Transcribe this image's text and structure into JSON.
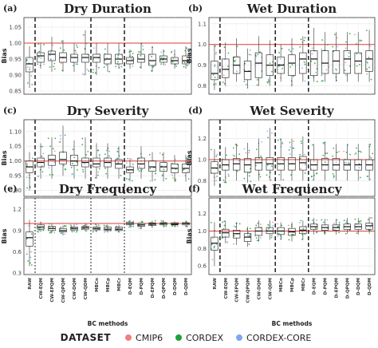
{
  "legend": {
    "title": "DATASET",
    "items": [
      {
        "label": "CMIP6",
        "color": "#f07f7f"
      },
      {
        "label": "CORDEX",
        "color": "#1fa03a"
      },
      {
        "label": "CORDEX-CORE",
        "color": "#7fa7f0"
      }
    ]
  },
  "chart_data": [
    {
      "type": "box",
      "panel_label": "(a)",
      "title": "Dry Duration",
      "ylabel": "Bias",
      "ylim": [
        0.84,
        1.08
      ],
      "yticks": [
        "0.85",
        "0.90",
        "0.95",
        "1.00",
        "1.05"
      ],
      "ytick_values": [
        0.85,
        0.9,
        0.95,
        1.0,
        1.05
      ],
      "reference_line": 1.0,
      "separator_style": "dashed",
      "categories": [
        "RAW",
        "CW-EQM",
        "CW-EPQM",
        "CW-QPQM",
        "CW-DQM",
        "CW-QDM",
        "MBCn",
        "MBCp",
        "MBCr",
        "D-EQM",
        "D-PQM",
        "D-EPQM",
        "D-QPQM",
        "D-DQM",
        "D-QDM"
      ],
      "boxes": [
        {
          "min": 0.86,
          "q1": 0.91,
          "median": 0.935,
          "q3": 0.955,
          "max": 0.99
        },
        {
          "min": 0.92,
          "q1": 0.94,
          "median": 0.96,
          "q3": 0.97,
          "max": 1.0
        },
        {
          "min": 0.91,
          "q1": 0.945,
          "median": 0.965,
          "q3": 0.975,
          "max": 1.02
        },
        {
          "min": 0.91,
          "q1": 0.94,
          "median": 0.955,
          "q3": 0.97,
          "max": 1.01
        },
        {
          "min": 0.91,
          "q1": 0.94,
          "median": 0.955,
          "q3": 0.965,
          "max": 1.0
        },
        {
          "min": 0.9,
          "q1": 0.94,
          "median": 0.955,
          "q3": 0.965,
          "max": 1.04
        },
        {
          "min": 0.9,
          "q1": 0.94,
          "median": 0.955,
          "q3": 0.965,
          "max": 1.0
        },
        {
          "min": 0.91,
          "q1": 0.935,
          "median": 0.95,
          "q3": 0.965,
          "max": 1.0
        },
        {
          "min": 0.92,
          "q1": 0.935,
          "median": 0.95,
          "q3": 0.965,
          "max": 1.0
        },
        {
          "min": 0.92,
          "q1": 0.935,
          "median": 0.945,
          "q3": 0.955,
          "max": 0.98
        },
        {
          "min": 0.92,
          "q1": 0.94,
          "median": 0.95,
          "q3": 0.965,
          "max": 1.0
        },
        {
          "min": 0.91,
          "q1": 0.93,
          "median": 0.945,
          "q3": 0.965,
          "max": 0.99
        },
        {
          "min": 0.93,
          "q1": 0.94,
          "median": 0.95,
          "q3": 0.96,
          "max": 0.98
        },
        {
          "min": 0.92,
          "q1": 0.935,
          "median": 0.945,
          "q3": 0.955,
          "max": 0.98
        },
        {
          "min": 0.92,
          "q1": 0.935,
          "median": 0.945,
          "q3": 0.96,
          "max": 0.99
        }
      ]
    },
    {
      "type": "box",
      "panel_label": "(b)",
      "title": "Wet Duration",
      "ylabel": "Bias",
      "ylim": [
        0.76,
        1.13
      ],
      "yticks": [
        "0.8",
        "0.9",
        "1.0",
        "1.1"
      ],
      "ytick_values": [
        0.8,
        0.9,
        1.0,
        1.1
      ],
      "reference_line": 1.0,
      "separator_style": "dashed",
      "categories": [
        "RAW",
        "CW-EQM",
        "CW-EPQM",
        "CW-QPQM",
        "CW-DQM",
        "CW-QDM",
        "MBCn",
        "MBCp",
        "MBCr",
        "D-EQM",
        "D-PQM",
        "D-EPQM",
        "D-QPQM",
        "D-DQM",
        "D-QDM"
      ],
      "boxes": [
        {
          "min": 0.78,
          "q1": 0.83,
          "median": 0.86,
          "q3": 0.92,
          "max": 1.0
        },
        {
          "min": 0.8,
          "q1": 0.84,
          "median": 0.88,
          "q3": 0.93,
          "max": 1.01
        },
        {
          "min": 0.82,
          "q1": 0.86,
          "median": 0.9,
          "q3": 0.94,
          "max": 1.03
        },
        {
          "min": 0.79,
          "q1": 0.83,
          "median": 0.87,
          "q3": 0.92,
          "max": 0.98
        },
        {
          "min": 0.8,
          "q1": 0.84,
          "median": 0.91,
          "q3": 0.96,
          "max": 1.04
        },
        {
          "min": 0.8,
          "q1": 0.85,
          "median": 0.9,
          "q3": 0.95,
          "max": 1.02
        },
        {
          "min": 0.82,
          "q1": 0.86,
          "median": 0.9,
          "q3": 0.94,
          "max": 1.0
        },
        {
          "min": 0.8,
          "q1": 0.85,
          "median": 0.91,
          "q3": 0.95,
          "max": 1.03
        },
        {
          "min": 0.82,
          "q1": 0.86,
          "median": 0.93,
          "q3": 0.96,
          "max": 1.04
        },
        {
          "min": 0.82,
          "q1": 0.85,
          "median": 0.93,
          "q3": 0.97,
          "max": 1.08
        },
        {
          "min": 0.82,
          "q1": 0.86,
          "median": 0.91,
          "q3": 0.97,
          "max": 1.06
        },
        {
          "min": 0.82,
          "q1": 0.86,
          "median": 0.92,
          "q3": 0.97,
          "max": 1.06
        },
        {
          "min": 0.82,
          "q1": 0.86,
          "median": 0.93,
          "q3": 0.97,
          "max": 1.06
        },
        {
          "min": 0.82,
          "q1": 0.86,
          "median": 0.92,
          "q3": 0.96,
          "max": 1.06
        },
        {
          "min": 0.82,
          "q1": 0.87,
          "median": 0.93,
          "q3": 0.97,
          "max": 1.07
        }
      ]
    },
    {
      "type": "box",
      "panel_label": "(c)",
      "title": "Dry Severity",
      "ylabel": "Bias",
      "ylim": [
        0.88,
        1.14
      ],
      "yticks": [
        "0.90",
        "0.95",
        "1.00",
        "1.05",
        "1.10"
      ],
      "ytick_values": [
        0.9,
        0.95,
        1.0,
        1.05,
        1.1
      ],
      "reference_line": 1.0,
      "separator_style": "dashed",
      "categories": [
        "RAW",
        "CW-EQM",
        "CW-EPQM",
        "CW-QPQM",
        "CW-DQM",
        "CW-QDM",
        "MBCn",
        "MBCp",
        "MBCr",
        "D-EQM",
        "D-PQM",
        "D-EPQM",
        "D-QPQM",
        "D-DQM",
        "D-QDM"
      ],
      "boxes": [
        {
          "min": 0.9,
          "q1": 0.96,
          "median": 0.98,
          "q3": 1.0,
          "max": 1.03
        },
        {
          "min": 0.94,
          "q1": 0.98,
          "median": 0.995,
          "q3": 1.01,
          "max": 1.06
        },
        {
          "min": 0.94,
          "q1": 0.985,
          "median": 1.005,
          "q3": 1.02,
          "max": 1.08
        },
        {
          "min": 0.95,
          "q1": 0.99,
          "median": 1.005,
          "q3": 1.03,
          "max": 1.12
        },
        {
          "min": 0.94,
          "q1": 0.985,
          "median": 1.0,
          "q3": 1.02,
          "max": 1.07
        },
        {
          "min": 0.94,
          "q1": 0.98,
          "median": 0.995,
          "q3": 1.01,
          "max": 1.08
        },
        {
          "min": 0.94,
          "q1": 0.98,
          "median": 0.99,
          "q3": 1.01,
          "max": 1.06
        },
        {
          "min": 0.94,
          "q1": 0.98,
          "median": 0.995,
          "q3": 1.01,
          "max": 1.06
        },
        {
          "min": 0.94,
          "q1": 0.975,
          "median": 0.99,
          "q3": 1.005,
          "max": 1.05
        },
        {
          "min": 0.93,
          "q1": 0.96,
          "median": 0.97,
          "q3": 0.98,
          "max": 1.01
        },
        {
          "min": 0.94,
          "q1": 0.975,
          "median": 0.99,
          "q3": 1.01,
          "max": 1.05
        },
        {
          "min": 0.93,
          "q1": 0.965,
          "median": 0.98,
          "q3": 1.0,
          "max": 1.03
        },
        {
          "min": 0.93,
          "q1": 0.965,
          "median": 0.98,
          "q3": 0.995,
          "max": 1.03
        },
        {
          "min": 0.93,
          "q1": 0.96,
          "median": 0.975,
          "q3": 0.99,
          "max": 1.02
        },
        {
          "min": 0.93,
          "q1": 0.96,
          "median": 0.975,
          "q3": 0.99,
          "max": 1.02
        }
      ]
    },
    {
      "type": "box",
      "panel_label": "(d)",
      "title": "Wet Severity",
      "ylabel": "Bias",
      "ylim": [
        0.65,
        1.38
      ],
      "yticks": [
        "0.8",
        "1.0",
        "1.2"
      ],
      "ytick_values": [
        0.8,
        1.0,
        1.2
      ],
      "reference_line": 1.0,
      "separator_style": "dashed",
      "categories": [
        "RAW",
        "CW-EQM",
        "CW-EPQM",
        "CW-QPQM",
        "CW-DQM",
        "CW-QDM",
        "MBCn",
        "MBCp",
        "MBCr",
        "D-EQM",
        "D-PQM",
        "D-EPQM",
        "D-QPQM",
        "D-DQM",
        "D-QDM"
      ],
      "boxes": [
        {
          "min": 0.75,
          "q1": 0.87,
          "median": 0.92,
          "q3": 0.98,
          "max": 1.1
        },
        {
          "min": 0.78,
          "q1": 0.9,
          "median": 0.95,
          "q3": 1.0,
          "max": 1.12
        },
        {
          "min": 0.8,
          "q1": 0.9,
          "median": 0.96,
          "q3": 1.01,
          "max": 1.15
        },
        {
          "min": 0.78,
          "q1": 0.88,
          "median": 0.95,
          "q3": 1.01,
          "max": 1.16
        },
        {
          "min": 0.8,
          "q1": 0.9,
          "median": 0.97,
          "q3": 1.02,
          "max": 1.2
        },
        {
          "min": 0.8,
          "q1": 0.9,
          "median": 0.96,
          "q3": 1.02,
          "max": 1.3
        },
        {
          "min": 0.8,
          "q1": 0.9,
          "median": 0.96,
          "q3": 1.02,
          "max": 1.2
        },
        {
          "min": 0.8,
          "q1": 0.9,
          "median": 0.96,
          "q3": 1.02,
          "max": 1.2
        },
        {
          "min": 0.8,
          "q1": 0.9,
          "median": 0.97,
          "q3": 1.03,
          "max": 1.22
        },
        {
          "min": 0.8,
          "q1": 0.9,
          "median": 0.95,
          "q3": 1.0,
          "max": 1.15
        },
        {
          "min": 0.8,
          "q1": 0.9,
          "median": 0.95,
          "q3": 1.01,
          "max": 1.17
        },
        {
          "min": 0.8,
          "q1": 0.9,
          "median": 0.95,
          "q3": 1.01,
          "max": 1.15
        },
        {
          "min": 0.8,
          "q1": 0.9,
          "median": 0.95,
          "q3": 1.0,
          "max": 1.15
        },
        {
          "min": 0.8,
          "q1": 0.9,
          "median": 0.95,
          "q3": 1.0,
          "max": 1.15
        },
        {
          "min": 0.8,
          "q1": 0.9,
          "median": 0.95,
          "q3": 1.0,
          "max": 1.15
        }
      ]
    },
    {
      "type": "box",
      "panel_label": "(e)",
      "title": "Dry Frequency",
      "ylabel": "Bias",
      "ylim": [
        0.28,
        1.36
      ],
      "yticks": [
        "0.3",
        "0.6",
        "0.9",
        "1.2"
      ],
      "ytick_values": [
        0.3,
        0.6,
        0.9,
        1.2
      ],
      "reference_line": 1.0,
      "separator_style": "dotted",
      "categories": [
        "RAW",
        "CW-EQM",
        "CW-EPQM",
        "CW-QPQM",
        "CW-DQM",
        "CW-QDM",
        "MBCn",
        "MBCp",
        "MBCr",
        "D-EQM",
        "D-PQM",
        "D-EPQM",
        "D-QPQM",
        "D-DQM",
        "D-QDM"
      ],
      "boxes": [
        {
          "min": 0.4,
          "q1": 0.68,
          "median": 0.8,
          "q3": 0.88,
          "max": 1.05
        },
        {
          "min": 0.88,
          "q1": 0.92,
          "median": 0.95,
          "q3": 0.98,
          "max": 1.02
        },
        {
          "min": 0.86,
          "q1": 0.9,
          "median": 0.93,
          "q3": 0.96,
          "max": 1.0
        },
        {
          "min": 0.84,
          "q1": 0.88,
          "median": 0.9,
          "q3": 0.93,
          "max": 0.97
        },
        {
          "min": 0.88,
          "q1": 0.91,
          "median": 0.93,
          "q3": 0.95,
          "max": 0.99
        },
        {
          "min": 0.89,
          "q1": 0.92,
          "median": 0.94,
          "q3": 0.96,
          "max": 1.0
        },
        {
          "min": 0.88,
          "q1": 0.91,
          "median": 0.93,
          "q3": 0.95,
          "max": 0.99
        },
        {
          "min": 0.87,
          "q1": 0.9,
          "median": 0.92,
          "q3": 0.95,
          "max": 0.98
        },
        {
          "min": 0.87,
          "q1": 0.9,
          "median": 0.92,
          "q3": 0.95,
          "max": 0.98
        },
        {
          "min": 0.94,
          "q1": 0.98,
          "median": 1.0,
          "q3": 1.02,
          "max": 1.05
        },
        {
          "min": 0.92,
          "q1": 0.96,
          "median": 0.98,
          "q3": 1.0,
          "max": 1.03
        },
        {
          "min": 0.94,
          "q1": 0.97,
          "median": 0.99,
          "q3": 1.01,
          "max": 1.04
        },
        {
          "min": 0.95,
          "q1": 0.98,
          "median": 1.0,
          "q3": 1.01,
          "max": 1.04
        },
        {
          "min": 0.95,
          "q1": 0.98,
          "median": 0.99,
          "q3": 1.01,
          "max": 1.03
        },
        {
          "min": 0.95,
          "q1": 0.98,
          "median": 1.0,
          "q3": 1.01,
          "max": 1.04
        }
      ]
    },
    {
      "type": "box",
      "panel_label": "(f)",
      "title": "Wet Frequency",
      "ylabel": "Bias",
      "ylim": [
        0.5,
        1.38
      ],
      "yticks": [
        "0.6",
        "0.8",
        "1.0",
        "1.2"
      ],
      "ytick_values": [
        0.6,
        0.8,
        1.0,
        1.2
      ],
      "reference_line": 1.0,
      "separator_style": "dashed",
      "categories": [
        "RAW",
        "CW-EQM",
        "CW-EPQM",
        "CW-QPQM",
        "CW-DQM",
        "CW-QDM",
        "MBCn",
        "MBCp",
        "MBCr",
        "D-EQM",
        "D-PQM",
        "D-EPQM",
        "D-QPQM",
        "D-DQM",
        "D-QDM"
      ],
      "boxes": [
        {
          "min": 0.6,
          "q1": 0.78,
          "median": 0.86,
          "q3": 0.93,
          "max": 1.1
        },
        {
          "min": 0.86,
          "q1": 0.93,
          "median": 0.98,
          "q3": 1.02,
          "max": 1.12
        },
        {
          "min": 0.84,
          "q1": 0.92,
          "median": 0.97,
          "q3": 1.01,
          "max": 1.1
        },
        {
          "min": 0.82,
          "q1": 0.88,
          "median": 0.93,
          "q3": 0.97,
          "max": 1.05
        },
        {
          "min": 0.88,
          "q1": 0.95,
          "median": 1.0,
          "q3": 1.04,
          "max": 1.12
        },
        {
          "min": 0.9,
          "q1": 0.97,
          "median": 1.0,
          "q3": 1.04,
          "max": 1.12
        },
        {
          "min": 0.9,
          "q1": 0.96,
          "median": 1.0,
          "q3": 1.04,
          "max": 1.1
        },
        {
          "min": 0.88,
          "q1": 0.95,
          "median": 0.99,
          "q3": 1.03,
          "max": 1.1
        },
        {
          "min": 0.9,
          "q1": 0.97,
          "median": 1.01,
          "q3": 1.05,
          "max": 1.12
        },
        {
          "min": 0.96,
          "q1": 1.02,
          "median": 1.05,
          "q3": 1.08,
          "max": 1.15
        },
        {
          "min": 0.96,
          "q1": 1.01,
          "median": 1.04,
          "q3": 1.07,
          "max": 1.14
        },
        {
          "min": 0.96,
          "q1": 1.01,
          "median": 1.04,
          "q3": 1.07,
          "max": 1.14
        },
        {
          "min": 0.97,
          "q1": 1.02,
          "median": 1.05,
          "q3": 1.08,
          "max": 1.15
        },
        {
          "min": 0.96,
          "q1": 1.02,
          "median": 1.05,
          "q3": 1.08,
          "max": 1.15
        },
        {
          "min": 0.97,
          "q1": 1.02,
          "median": 1.06,
          "q3": 1.09,
          "max": 1.16
        }
      ]
    }
  ],
  "shared_x_axis": {
    "label": "BC methods"
  }
}
